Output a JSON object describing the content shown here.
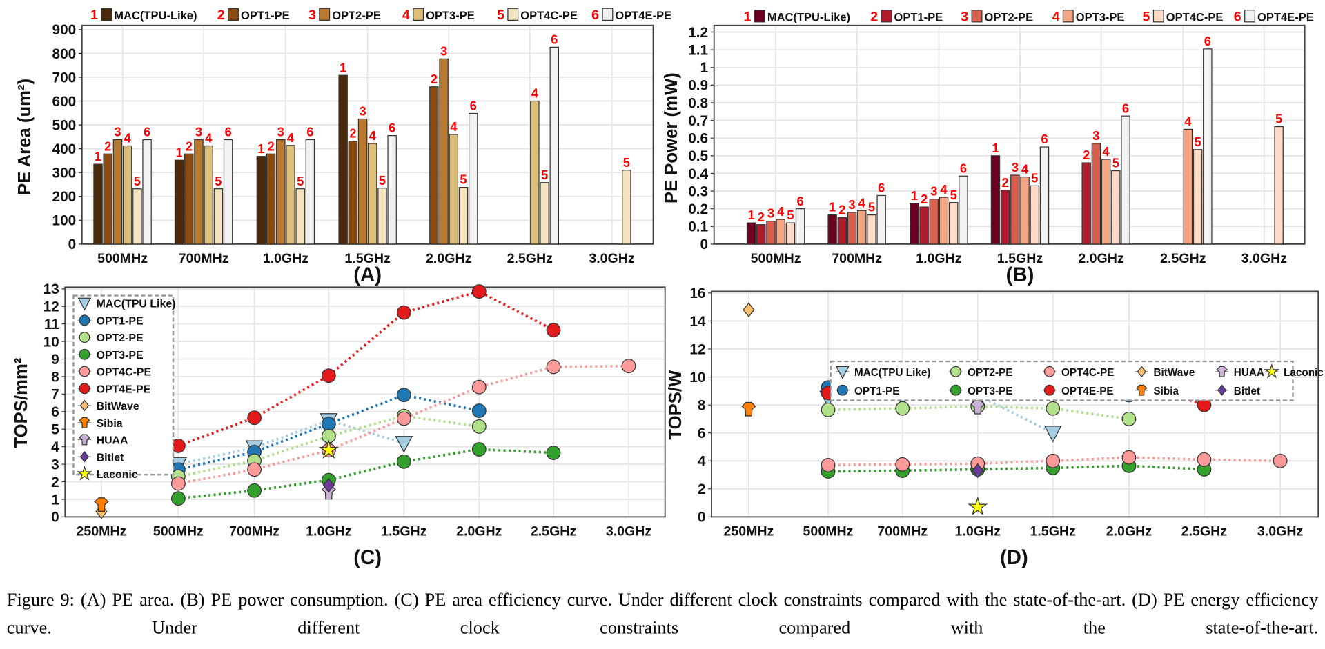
{
  "figure": {
    "caption": "Figure 9: (A) PE area. (B) PE power consumption. (C) PE area efficiency curve. Under different clock constraints compared with the state-of-the-art. (D) PE energy efficiency curve. Under different clock constraints compared with the state-of-the-art."
  },
  "chart_data": [
    {
      "type": "bar",
      "panel_label": "(A)",
      "ylabel": "PE Area (um²)",
      "xlabel": "",
      "categories": [
        "500MHz",
        "700MHz",
        "1.0GHz",
        "1.5GHz",
        "2.0GHz",
        "2.5GHz",
        "3.0GHz"
      ],
      "ylim": [
        0,
        900
      ],
      "yticks": [
        "0",
        "100",
        "200",
        "300",
        "400",
        "500",
        "600",
        "700",
        "800",
        "900"
      ],
      "grid": true,
      "legend": "top",
      "series": [
        {
          "tag": "1",
          "name": "MAC(TPU-Like)",
          "color": "#4a2a0a",
          "values": [
            335,
            352,
            368,
            708,
            null,
            null,
            null
          ]
        },
        {
          "tag": "2",
          "name": "OPT1-PE",
          "color": "#8b4a10",
          "values": [
            378,
            378,
            378,
            432,
            660,
            null,
            null
          ]
        },
        {
          "tag": "3",
          "name": "OPT2-PE",
          "color": "#b87a30",
          "values": [
            438,
            438,
            438,
            525,
            777,
            null,
            null
          ]
        },
        {
          "tag": "4",
          "name": "OPT3-PE",
          "color": "#dcbf7a",
          "values": [
            412,
            412,
            414,
            422,
            460,
            600,
            null
          ]
        },
        {
          "tag": "5",
          "name": "OPT4C-PE",
          "color": "#f5e4c0",
          "values": [
            232,
            232,
            232,
            235,
            238,
            258,
            310
          ]
        },
        {
          "tag": "6",
          "name": "OPT4E-PE",
          "color": "#f2f2f2",
          "values": [
            438,
            438,
            438,
            455,
            548,
            826,
            null
          ]
        }
      ]
    },
    {
      "type": "bar",
      "panel_label": "(B)",
      "ylabel": "PE Power (mW)",
      "xlabel": "",
      "categories": [
        "500MHz",
        "700MHz",
        "1.0GHz",
        "1.5GHz",
        "2.0GHz",
        "2.5GHz",
        "3.0GHz"
      ],
      "ylim": [
        0,
        1.2
      ],
      "yticks": [
        "0",
        "0.1",
        "0.2",
        "0.3",
        "0.4",
        "0.5",
        "0.6",
        "0.7",
        "0.8",
        "0.9",
        "1",
        "1.1",
        "1.2"
      ],
      "grid": true,
      "legend": "top",
      "series": [
        {
          "tag": "1",
          "name": "MAC(TPU-Like)",
          "color": "#6b0020",
          "values": [
            0.12,
            0.165,
            0.23,
            0.5,
            null,
            null,
            null
          ]
        },
        {
          "tag": "2",
          "name": "OPT1-PE",
          "color": "#b01c2e",
          "values": [
            0.11,
            0.15,
            0.21,
            0.305,
            0.46,
            null,
            null
          ]
        },
        {
          "tag": "3",
          "name": "OPT2-PE",
          "color": "#d6604d",
          "values": [
            0.13,
            0.18,
            0.255,
            0.39,
            0.57,
            null,
            null
          ]
        },
        {
          "tag": "4",
          "name": "OPT3-PE",
          "color": "#f4a582",
          "values": [
            0.14,
            0.19,
            0.265,
            0.38,
            0.48,
            0.65,
            null
          ]
        },
        {
          "tag": "5",
          "name": "OPT4C-PE",
          "color": "#fddbc7",
          "values": [
            0.12,
            0.165,
            0.235,
            0.33,
            0.415,
            0.535,
            0.665
          ]
        },
        {
          "tag": "6",
          "name": "OPT4E-PE",
          "color": "#f2f2f2",
          "values": [
            0.2,
            0.275,
            0.385,
            0.55,
            0.725,
            1.105,
            null
          ]
        }
      ]
    },
    {
      "type": "line",
      "panel_label": "(C)",
      "ylabel": "TOPS/mm²",
      "xlabel": "",
      "categories": [
        "250MHz",
        "500MHz",
        "700MHz",
        "1.0GHz",
        "1.5GHz",
        "2.0GHz",
        "2.5GHz",
        "3.0GHz"
      ],
      "ylim": [
        0,
        13
      ],
      "yticks": [
        "0",
        "1",
        "2",
        "3",
        "4",
        "5",
        "6",
        "7",
        "8",
        "9",
        "10",
        "11",
        "12",
        "13"
      ],
      "grid": true,
      "legend": "top-left",
      "series": [
        {
          "name": "MAC(TPU Like)",
          "marker": "triangle-down",
          "color": "#a6cee3",
          "line_color": "#a6cee3",
          "values": [
            null,
            3.0,
            3.95,
            5.5,
            4.2,
            null,
            null,
            null
          ]
        },
        {
          "name": "OPT1-PE",
          "marker": "circle",
          "color": "#1f78b4",
          "line_color": "#1f78b4",
          "values": [
            null,
            2.7,
            3.7,
            5.3,
            6.95,
            6.05,
            null,
            null
          ]
        },
        {
          "name": "OPT2-PE",
          "marker": "circle",
          "color": "#b2df8a",
          "line_color": "#b2df8a",
          "values": [
            null,
            2.3,
            3.2,
            4.6,
            5.75,
            5.15,
            null,
            null
          ]
        },
        {
          "name": "OPT3-PE",
          "marker": "circle",
          "color": "#33a02c",
          "line_color": "#33a02c",
          "values": [
            null,
            1.05,
            1.5,
            2.1,
            3.15,
            3.85,
            3.65,
            null
          ]
        },
        {
          "name": "OPT4C-PE",
          "marker": "circle",
          "color": "#fb9a99",
          "line_color": "#fb9a99",
          "values": [
            null,
            1.9,
            2.7,
            3.8,
            5.6,
            7.4,
            8.55,
            8.6
          ]
        },
        {
          "name": "OPT4E-PE",
          "marker": "circle",
          "color": "#e31a1c",
          "line_color": "#e31a1c",
          "values": [
            null,
            4.05,
            5.65,
            8.05,
            11.65,
            12.85,
            10.65,
            null
          ]
        },
        {
          "name": "BitWave",
          "marker": "diamond",
          "color": "#fdbf6f",
          "values": [
            0.3,
            null,
            null,
            null,
            null,
            null,
            null,
            null
          ]
        },
        {
          "name": "Sibia",
          "marker": "shirt",
          "color": "#ff7f00",
          "values": [
            0.7,
            null,
            null,
            null,
            null,
            null,
            null,
            null
          ]
        },
        {
          "name": "HUAA",
          "marker": "shirt",
          "color": "#cab2d6",
          "values": [
            null,
            null,
            null,
            1.4,
            null,
            null,
            null,
            null
          ]
        },
        {
          "name": "Bitlet",
          "marker": "diamond",
          "color": "#6a3d9a",
          "values": [
            null,
            null,
            null,
            1.8,
            null,
            null,
            null,
            null
          ]
        },
        {
          "name": "Laconic",
          "marker": "star",
          "color": "#ffff00",
          "values": [
            null,
            null,
            null,
            3.8,
            null,
            null,
            null,
            null
          ]
        }
      ]
    },
    {
      "type": "line",
      "panel_label": "(D)",
      "ylabel": "TOPS/W",
      "xlabel": "",
      "categories": [
        "250MHz",
        "500MHz",
        "700MHz",
        "1.0GHz",
        "1.5GHz",
        "2.0GHz",
        "2.5GHz",
        "3.0GHz"
      ],
      "ylim": [
        0,
        16
      ],
      "yticks": [
        "0",
        "2",
        "4",
        "6",
        "8",
        "10",
        "12",
        "14",
        "16"
      ],
      "grid": true,
      "legend": "top-right",
      "series": [
        {
          "name": "MAC(TPU Like)",
          "marker": "triangle-down",
          "color": "#a6cee3",
          "line_color": "#a6cee3",
          "values": [
            null,
            8.5,
            8.55,
            8.7,
            6.0,
            null,
            null,
            null
          ]
        },
        {
          "name": "OPT1-PE",
          "marker": "circle",
          "color": "#1f78b4",
          "line_color": "#1f78b4",
          "values": [
            null,
            9.25,
            9.35,
            9.6,
            9.85,
            8.7,
            null,
            null
          ]
        },
        {
          "name": "OPT2-PE",
          "marker": "circle",
          "color": "#b2df8a",
          "line_color": "#b2df8a",
          "values": [
            null,
            7.65,
            7.75,
            7.9,
            7.75,
            7.0,
            null,
            null
          ]
        },
        {
          "name": "OPT3-PE",
          "marker": "circle",
          "color": "#33a02c",
          "line_color": "#33a02c",
          "values": [
            null,
            3.25,
            3.3,
            3.4,
            3.5,
            3.65,
            3.4,
            null
          ]
        },
        {
          "name": "OPT4C-PE",
          "marker": "circle",
          "color": "#fb9a99",
          "line_color": "#fb9a99",
          "values": [
            null,
            3.7,
            3.75,
            3.8,
            4.0,
            4.25,
            4.1,
            4.0
          ]
        },
        {
          "name": "OPT4E-PE",
          "marker": "circle",
          "color": "#e31a1c",
          "line_color": "#e31a1c",
          "values": [
            null,
            8.85,
            9.0,
            9.2,
            9.7,
            9.75,
            8.0,
            null
          ]
        },
        {
          "name": "BitWave",
          "marker": "diamond",
          "color": "#fdbf6f",
          "values": [
            14.8,
            null,
            null,
            null,
            null,
            null,
            null,
            null
          ]
        },
        {
          "name": "Sibia",
          "marker": "shirt",
          "color": "#ff7f00",
          "values": [
            7.7,
            null,
            null,
            null,
            null,
            null,
            null,
            null
          ]
        },
        {
          "name": "HUAA",
          "marker": "shirt",
          "color": "#cab2d6",
          "values": [
            null,
            null,
            null,
            7.85,
            null,
            null,
            null,
            null
          ]
        },
        {
          "name": "Bitlet",
          "marker": "diamond",
          "color": "#6a3d9a",
          "values": [
            null,
            null,
            null,
            3.3,
            null,
            null,
            null,
            null
          ]
        },
        {
          "name": "Laconic",
          "marker": "star",
          "color": "#ffff00",
          "values": [
            null,
            null,
            null,
            0.7,
            null,
            null,
            null,
            null
          ]
        }
      ]
    }
  ]
}
